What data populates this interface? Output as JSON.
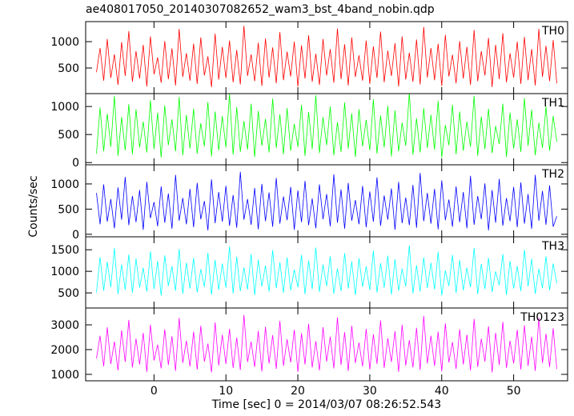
{
  "title": "ae408017050_20140307082652_wam3_bst_4band_nobin.qdp",
  "xlabel": "Time [sec] 0 = 2014/03/07 08:26:52.543",
  "ylabel": "Counts/sec",
  "chart_data": [
    {
      "type": "line",
      "label": "TH0",
      "color": "#ff0000",
      "xlim": [
        -9.5,
        57.5
      ],
      "xticks": [
        0,
        10,
        20,
        30,
        40,
        50
      ],
      "ylim": [
        15,
        1380
      ],
      "yticks": [
        500,
        1000
      ],
      "x": [
        -8,
        -7.5,
        -7,
        -6.5,
        -6,
        -5.5,
        -5,
        -4.5,
        -4,
        -3.5,
        -3,
        -2.5,
        -2,
        -1.5,
        -1,
        -0.5,
        0,
        0.5,
        1,
        1.5,
        2,
        2.5,
        3,
        3.5,
        4,
        4.5,
        5,
        5.5,
        6,
        6.5,
        7,
        7.5,
        8,
        8.5,
        9,
        9.5,
        10,
        10.5,
        11,
        11.5,
        12,
        12.5,
        13,
        13.5,
        14,
        14.5,
        15,
        15.5,
        16,
        16.5,
        17,
        17.5,
        18,
        18.5,
        19,
        19.5,
        20,
        20.5,
        21,
        21.5,
        22,
        22.5,
        23,
        23.5,
        24,
        24.5,
        25,
        25.5,
        26,
        26.5,
        27,
        27.5,
        28,
        28.5,
        29,
        29.5,
        30,
        30.5,
        31,
        31.5,
        32,
        32.5,
        33,
        33.5,
        34,
        34.5,
        35,
        35.5,
        36,
        36.5,
        37,
        37.5,
        38,
        38.5,
        39,
        39.5,
        40,
        40.5,
        41,
        41.5,
        42,
        42.5,
        43,
        43.5,
        44,
        44.5,
        45,
        45.5,
        46,
        46.5,
        47,
        47.5,
        48,
        48.5,
        49,
        49.5,
        50,
        50.5,
        51,
        51.5,
        52,
        52.5,
        53,
        53.5,
        54,
        54.5,
        55,
        55.5,
        56
      ],
      "values": [
        420,
        880,
        260,
        1050,
        310,
        760,
        180,
        990,
        350,
        1200,
        240,
        820,
        300,
        940,
        150,
        1100,
        380,
        700,
        220,
        1010,
        290,
        870,
        170,
        1240,
        330,
        780,
        260,
        960,
        200,
        1080,
        360,
        720,
        140,
        1150,
        280,
        900,
        310,
        1020,
        230,
        840,
        190,
        1300,
        350,
        760,
        250,
        980,
        160,
        1060,
        320,
        890,
        210,
        1180,
        270,
        810,
        340,
        1000,
        150,
        930,
        300,
        1120,
        240,
        770,
        180,
        1050,
        360,
        860,
        220,
        1250,
        290,
        950,
        170,
        1080,
        330,
        740,
        260,
        1020,
        200,
        910,
        310,
        1190,
        230,
        830,
        350,
        970,
        150,
        1100,
        280,
        790,
        240,
        1040,
        190,
        1280,
        320,
        880,
        270,
        960,
        160,
        1130,
        340,
        750,
        210,
        1010,
        300,
        900,
        180,
        1220,
        250,
        820,
        360,
        1070,
        140,
        940,
        290,
        1160,
        230,
        780,
        320,
        1000,
        200,
        1090,
        270,
        860,
        170,
        1240,
        330,
        920,
        250,
        1030,
        210
      ]
    },
    {
      "type": "line",
      "label": "TH1",
      "color": "#00ff00",
      "xlim": [
        -9.5,
        57.5
      ],
      "xticks": [
        0,
        10,
        20,
        30,
        40,
        50
      ],
      "ylim": [
        -40,
        1230
      ],
      "yticks": [
        0,
        500,
        1000
      ],
      "x": [
        -8,
        -7.5,
        -7,
        -6.5,
        -6,
        -5.5,
        -5,
        -4.5,
        -4,
        -3.5,
        -3,
        -2.5,
        -2,
        -1.5,
        -1,
        -0.5,
        0,
        0.5,
        1,
        1.5,
        2,
        2.5,
        3,
        3.5,
        4,
        4.5,
        5,
        5.5,
        6,
        6.5,
        7,
        7.5,
        8,
        8.5,
        9,
        9.5,
        10,
        10.5,
        11,
        11.5,
        12,
        12.5,
        13,
        13.5,
        14,
        14.5,
        15,
        15.5,
        16,
        16.5,
        17,
        17.5,
        18,
        18.5,
        19,
        19.5,
        20,
        20.5,
        21,
        21.5,
        22,
        22.5,
        23,
        23.5,
        24,
        24.5,
        25,
        25.5,
        26,
        26.5,
        27,
        27.5,
        28,
        28.5,
        29,
        29.5,
        30,
        30.5,
        31,
        31.5,
        32,
        32.5,
        33,
        33.5,
        34,
        34.5,
        35,
        35.5,
        36,
        36.5,
        37,
        37.5,
        38,
        38.5,
        39,
        39.5,
        40,
        40.5,
        41,
        41.5,
        42,
        42.5,
        43,
        43.5,
        44,
        44.5,
        45,
        45.5,
        46,
        46.5,
        47,
        47.5,
        48,
        48.5,
        49,
        49.5,
        50,
        50.5,
        51,
        51.5,
        52,
        52.5,
        53,
        53.5,
        54,
        54.5,
        55,
        55.5,
        56
      ],
      "values": [
        160,
        980,
        200,
        870,
        280,
        1190,
        120,
        810,
        220,
        1040,
        150,
        950,
        270,
        730,
        180,
        1110,
        240,
        890,
        90,
        1020,
        310,
        770,
        200,
        1170,
        130,
        850,
        250,
        960,
        160,
        700,
        290,
        1080,
        110,
        910,
        220,
        830,
        270,
        1230,
        140,
        990,
        190,
        740,
        230,
        1050,
        100,
        920,
        300,
        780,
        180,
        1140,
        260,
        860,
        150,
        970,
        210,
        690,
        280,
        1030,
        120,
        900,
        240,
        1200,
        170,
        810,
        310,
        1000,
        130,
        720,
        190,
        1070,
        250,
        880,
        100,
        950,
        290,
        760,
        220,
        1130,
        160,
        840,
        270,
        1010,
        110,
        930,
        200,
        710,
        300,
        1250,
        140,
        790,
        180,
        970,
        260,
        850,
        230,
        1100,
        90,
        670,
        310,
        1030,
        150,
        910,
        210,
        730,
        280,
        1190,
        120,
        820,
        240,
        960,
        170,
        650,
        330,
        1050,
        100,
        890,
        250,
        770,
        190,
        1150,
        300,
        940,
        130,
        710,
        260,
        1000,
        210,
        830,
        370
      ]
    },
    {
      "type": "line",
      "label": "TH2",
      "color": "#0000ff",
      "xlim": [
        -9.5,
        57.5
      ],
      "xticks": [
        0,
        10,
        20,
        30,
        40,
        50
      ],
      "ylim": [
        -50,
        1380
      ],
      "yticks": [
        0,
        500,
        1000
      ],
      "x": [
        -8,
        -7.5,
        -7,
        -6.5,
        -6,
        -5.5,
        -5,
        -4.5,
        -4,
        -3.5,
        -3,
        -2.5,
        -2,
        -1.5,
        -1,
        -0.5,
        0,
        0.5,
        1,
        1.5,
        2,
        2.5,
        3,
        3.5,
        4,
        4.5,
        5,
        5.5,
        6,
        6.5,
        7,
        7.5,
        8,
        8.5,
        9,
        9.5,
        10,
        10.5,
        11,
        11.5,
        12,
        12.5,
        13,
        13.5,
        14,
        14.5,
        15,
        15.5,
        16,
        16.5,
        17,
        17.5,
        18,
        18.5,
        19,
        19.5,
        20,
        20.5,
        21,
        21.5,
        22,
        22.5,
        23,
        23.5,
        24,
        24.5,
        25,
        25.5,
        26,
        26.5,
        27,
        27.5,
        28,
        28.5,
        29,
        29.5,
        30,
        30.5,
        31,
        31.5,
        32,
        32.5,
        33,
        33.5,
        34,
        34.5,
        35,
        35.5,
        36,
        36.5,
        37,
        37.5,
        38,
        38.5,
        39,
        39.5,
        40,
        40.5,
        41,
        41.5,
        42,
        42.5,
        43,
        43.5,
        44,
        44.5,
        45,
        45.5,
        46,
        46.5,
        47,
        47.5,
        48,
        48.5,
        49,
        49.5,
        50,
        50.5,
        51,
        51.5,
        52,
        52.5,
        53,
        53.5,
        54,
        54.5,
        55,
        55.5,
        56
      ],
      "values": [
        820,
        200,
        990,
        250,
        700,
        120,
        930,
        290,
        1140,
        180,
        760,
        240,
        880,
        90,
        1040,
        320,
        640,
        160,
        950,
        230,
        810,
        110,
        1180,
        270,
        720,
        200,
        900,
        140,
        1020,
        300,
        660,
        80,
        1090,
        220,
        840,
        250,
        960,
        170,
        780,
        130,
        1240,
        290,
        700,
        190,
        920,
        100,
        1000,
        260,
        830,
        150,
        1120,
        210,
        750,
        280,
        940,
        90,
        870,
        240,
        1060,
        180,
        710,
        120,
        990,
        300,
        800,
        160,
        1190,
        230,
        890,
        110,
        1020,
        270,
        680,
        200,
        960,
        140,
        850,
        250,
        1130,
        170,
        770,
        290,
        910,
        90,
        1040,
        220,
        730,
        180,
        980,
        130,
        1220,
        260,
        820,
        210,
        900,
        100,
        1070,
        280,
        690,
        150,
        950,
        240,
        840,
        120,
        1160,
        190,
        760,
        300,
        1010,
        80,
        880,
        230,
        1100,
        170,
        720,
        260,
        940,
        140,
        1030,
        210,
        800,
        110,
        1180,
        270,
        860,
        190,
        970,
        150,
        360
      ]
    },
    {
      "type": "line",
      "label": "TH3",
      "color": "#00ffff",
      "xlim": [
        -9.5,
        57.5
      ],
      "xticks": [
        0,
        10,
        20,
        30,
        40,
        50
      ],
      "ylim": [
        150,
        1800
      ],
      "yticks": [
        500,
        1000,
        1500
      ],
      "x": [
        -8,
        -7.5,
        -7,
        -6.5,
        -6,
        -5.5,
        -5,
        -4.5,
        -4,
        -3.5,
        -3,
        -2.5,
        -2,
        -1.5,
        -1,
        -0.5,
        0,
        0.5,
        1,
        1.5,
        2,
        2.5,
        3,
        3.5,
        4,
        4.5,
        5,
        5.5,
        6,
        6.5,
        7,
        7.5,
        8,
        8.5,
        9,
        9.5,
        10,
        10.5,
        11,
        11.5,
        12,
        12.5,
        13,
        13.5,
        14,
        14.5,
        15,
        15.5,
        16,
        16.5,
        17,
        17.5,
        18,
        18.5,
        19,
        19.5,
        20,
        20.5,
        21,
        21.5,
        22,
        22.5,
        23,
        23.5,
        24,
        24.5,
        25,
        25.5,
        26,
        26.5,
        27,
        27.5,
        28,
        28.5,
        29,
        29.5,
        30,
        30.5,
        31,
        31.5,
        32,
        32.5,
        33,
        33.5,
        34,
        34.5,
        35,
        35.5,
        36,
        36.5,
        37,
        37.5,
        38,
        38.5,
        39,
        39.5,
        40,
        40.5,
        41,
        41.5,
        42,
        42.5,
        43,
        43.5,
        44,
        44.5,
        45,
        45.5,
        46,
        46.5,
        47,
        47.5,
        48,
        48.5,
        49,
        49.5,
        50,
        50.5,
        51,
        51.5,
        52,
        52.5,
        53,
        53.5,
        54,
        54.5,
        55,
        55.5,
        56
      ],
      "values": [
        510,
        1330,
        550,
        1220,
        630,
        1540,
        470,
        1160,
        570,
        1390,
        500,
        1300,
        620,
        1080,
        530,
        1460,
        590,
        1240,
        440,
        1370,
        660,
        1120,
        550,
        1520,
        480,
        1200,
        600,
        1310,
        510,
        1050,
        640,
        1430,
        460,
        1260,
        570,
        1180,
        620,
        1580,
        490,
        1340,
        540,
        1090,
        580,
        1400,
        450,
        1270,
        650,
        1130,
        530,
        1490,
        610,
        1210,
        500,
        1320,
        560,
        1040,
        630,
        1380,
        470,
        1250,
        590,
        1550,
        520,
        1160,
        660,
        1350,
        480,
        1070,
        540,
        1420,
        600,
        1230,
        450,
        1300,
        640,
        1110,
        570,
        1480,
        510,
        1190,
        620,
        1360,
        460,
        1280,
        550,
        1060,
        650,
        1600,
        490,
        1140,
        530,
        1320,
        610,
        1200,
        580,
        1450,
        440,
        1020,
        660,
        1380,
        500,
        1260,
        560,
        1080,
        630,
        1540,
        470,
        1170,
        590,
        1310,
        520,
        1000,
        680,
        1400,
        450,
        1240,
        600,
        1120,
        540,
        1500,
        650,
        1290,
        480,
        1060,
        610,
        1350,
        560,
        1180,
        720
      ]
    },
    {
      "type": "line",
      "label": "TH0123",
      "color": "#ff00ff",
      "xlim": [
        -9.5,
        57.5
      ],
      "xticks": [
        0,
        10,
        20,
        30,
        40,
        50
      ],
      "ylim": [
        740,
        3680
      ],
      "yticks": [
        1000,
        2000,
        3000
      ],
      "x": [
        -8,
        -7.5,
        -7,
        -6.5,
        -6,
        -5.5,
        -5,
        -4.5,
        -4,
        -3.5,
        -3,
        -2.5,
        -2,
        -1.5,
        -1,
        -0.5,
        0,
        0.5,
        1,
        1.5,
        2,
        2.5,
        3,
        3.5,
        4,
        4.5,
        5,
        5.5,
        6,
        6.5,
        7,
        7.5,
        8,
        8.5,
        9,
        9.5,
        10,
        10.5,
        11,
        11.5,
        12,
        12.5,
        13,
        13.5,
        14,
        14.5,
        15,
        15.5,
        16,
        16.5,
        17,
        17.5,
        18,
        18.5,
        19,
        19.5,
        20,
        20.5,
        21,
        21.5,
        22,
        22.5,
        23,
        23.5,
        24,
        24.5,
        25,
        25.5,
        26,
        26.5,
        27,
        27.5,
        28,
        28.5,
        29,
        29.5,
        30,
        30.5,
        31,
        31.5,
        32,
        32.5,
        33,
        33.5,
        34,
        34.5,
        35,
        35.5,
        36,
        36.5,
        37,
        37.5,
        38,
        38.5,
        39,
        39.5,
        40,
        40.5,
        41,
        41.5,
        42,
        42.5,
        43,
        43.5,
        44,
        44.5,
        45,
        45.5,
        46,
        46.5,
        47,
        47.5,
        48,
        48.5,
        49,
        49.5,
        50,
        50.5,
        51,
        51.5,
        52,
        52.5,
        53,
        53.5,
        54,
        54.5,
        55,
        55.5,
        56
      ],
      "values": [
        1640,
        2560,
        1320,
        2900,
        1420,
        2320,
        1160,
        2780,
        1500,
        3200,
        1280,
        2440,
        1400,
        2680,
        1100,
        3000,
        1560,
        2200,
        1240,
        2820,
        1380,
        2540,
        1140,
        3280,
        1460,
        2360,
        1320,
        2720,
        1200,
        2960,
        1520,
        2240,
        1080,
        3100,
        1360,
        2600,
        1420,
        2840,
        1260,
        2480,
        1180,
        3400,
        1500,
        2320,
        1300,
        2760,
        1120,
        2920,
        1440,
        2580,
        1220,
        3160,
        1340,
        2420,
        1480,
        2800,
        1100,
        2660,
        1400,
        3040,
        1280,
        2340,
        1160,
        2900,
        1520,
        2520,
        1240,
        3300,
        1380,
        2700,
        1140,
        2960,
        1460,
        2280,
        1320,
        2840,
        1200,
        2620,
        1420,
        3180,
        1260,
        2460,
        1500,
        2740,
        1100,
        3000,
        1360,
        2380,
        1280,
        2880,
        1180,
        3360,
        1440,
        2560,
        1340,
        2720,
        1120,
        3060,
        1480,
        2300,
        1220,
        2820,
        1400,
        2600,
        1160,
        3240,
        1300,
        2440,
        1520,
        2940,
        1080,
        2680,
        1380,
        3120,
        1260,
        2360,
        1440,
        2800,
        1200,
        2980,
        1340,
        2520,
        1140,
        3280,
        1460,
        2640,
        1300,
        2860,
        1220
      ]
    }
  ]
}
